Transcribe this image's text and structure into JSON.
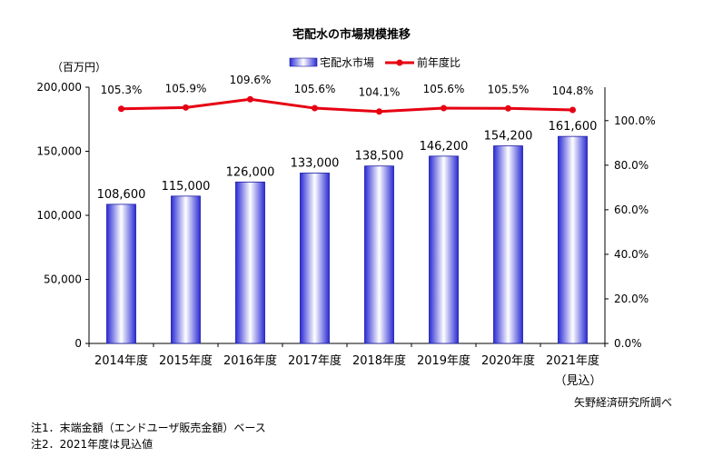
{
  "chart_data": {
    "type": "bar",
    "title": "宅配水の市場規模推移",
    "unit_label": "（百万円）",
    "categories": [
      "2014年度",
      "2015年度",
      "2016年度",
      "2017年度",
      "2018年度",
      "2019年度",
      "2020年度",
      "2021年度"
    ],
    "category_sublabels": [
      "",
      "",
      "",
      "",
      "",
      "",
      "",
      "（見込）"
    ],
    "series": [
      {
        "name": "宅配水市場",
        "type": "bar",
        "axis": "left",
        "values": [
          108600,
          115000,
          126000,
          133000,
          138500,
          146200,
          154200,
          161600
        ],
        "value_labels": [
          "108,600",
          "115,000",
          "126,000",
          "133,000",
          "138,500",
          "146,200",
          "154,200",
          "161,600"
        ]
      },
      {
        "name": "前年度比",
        "type": "line",
        "axis": "right",
        "values": [
          105.3,
          105.9,
          109.6,
          105.6,
          104.1,
          105.6,
          105.5,
          104.8
        ],
        "value_labels": [
          "105.3%",
          "105.9%",
          "109.6%",
          "105.6%",
          "104.1%",
          "105.6%",
          "105.5%",
          "104.8%"
        ],
        "color": "#e60012"
      }
    ],
    "y_left": {
      "ylim": [
        0,
        200000
      ],
      "ticks": [
        0,
        50000,
        100000,
        150000,
        200000
      ],
      "tick_labels": [
        "0",
        "50,000",
        "100,000",
        "150,000",
        "200,000"
      ]
    },
    "y_right": {
      "ylim": [
        0,
        115
      ],
      "ticks": [
        0,
        20,
        40,
        60,
        80,
        100
      ],
      "tick_labels": [
        "0.0%",
        "20.0%",
        "40.0%",
        "60.0%",
        "80.0%",
        "100.0%"
      ]
    },
    "legend_position": "top-center",
    "grid": false,
    "colors": {
      "bar_edge": "#1a1aa0",
      "bar_dark": "#2b2bd6",
      "bar_light": "#ffffff",
      "line": "#e60012"
    }
  },
  "notes": [
    "注1．末端金額（エンドユーザ販売金額）ベース",
    "注2．2021年度は見込値"
  ],
  "source": "矢野経済研究所調べ"
}
